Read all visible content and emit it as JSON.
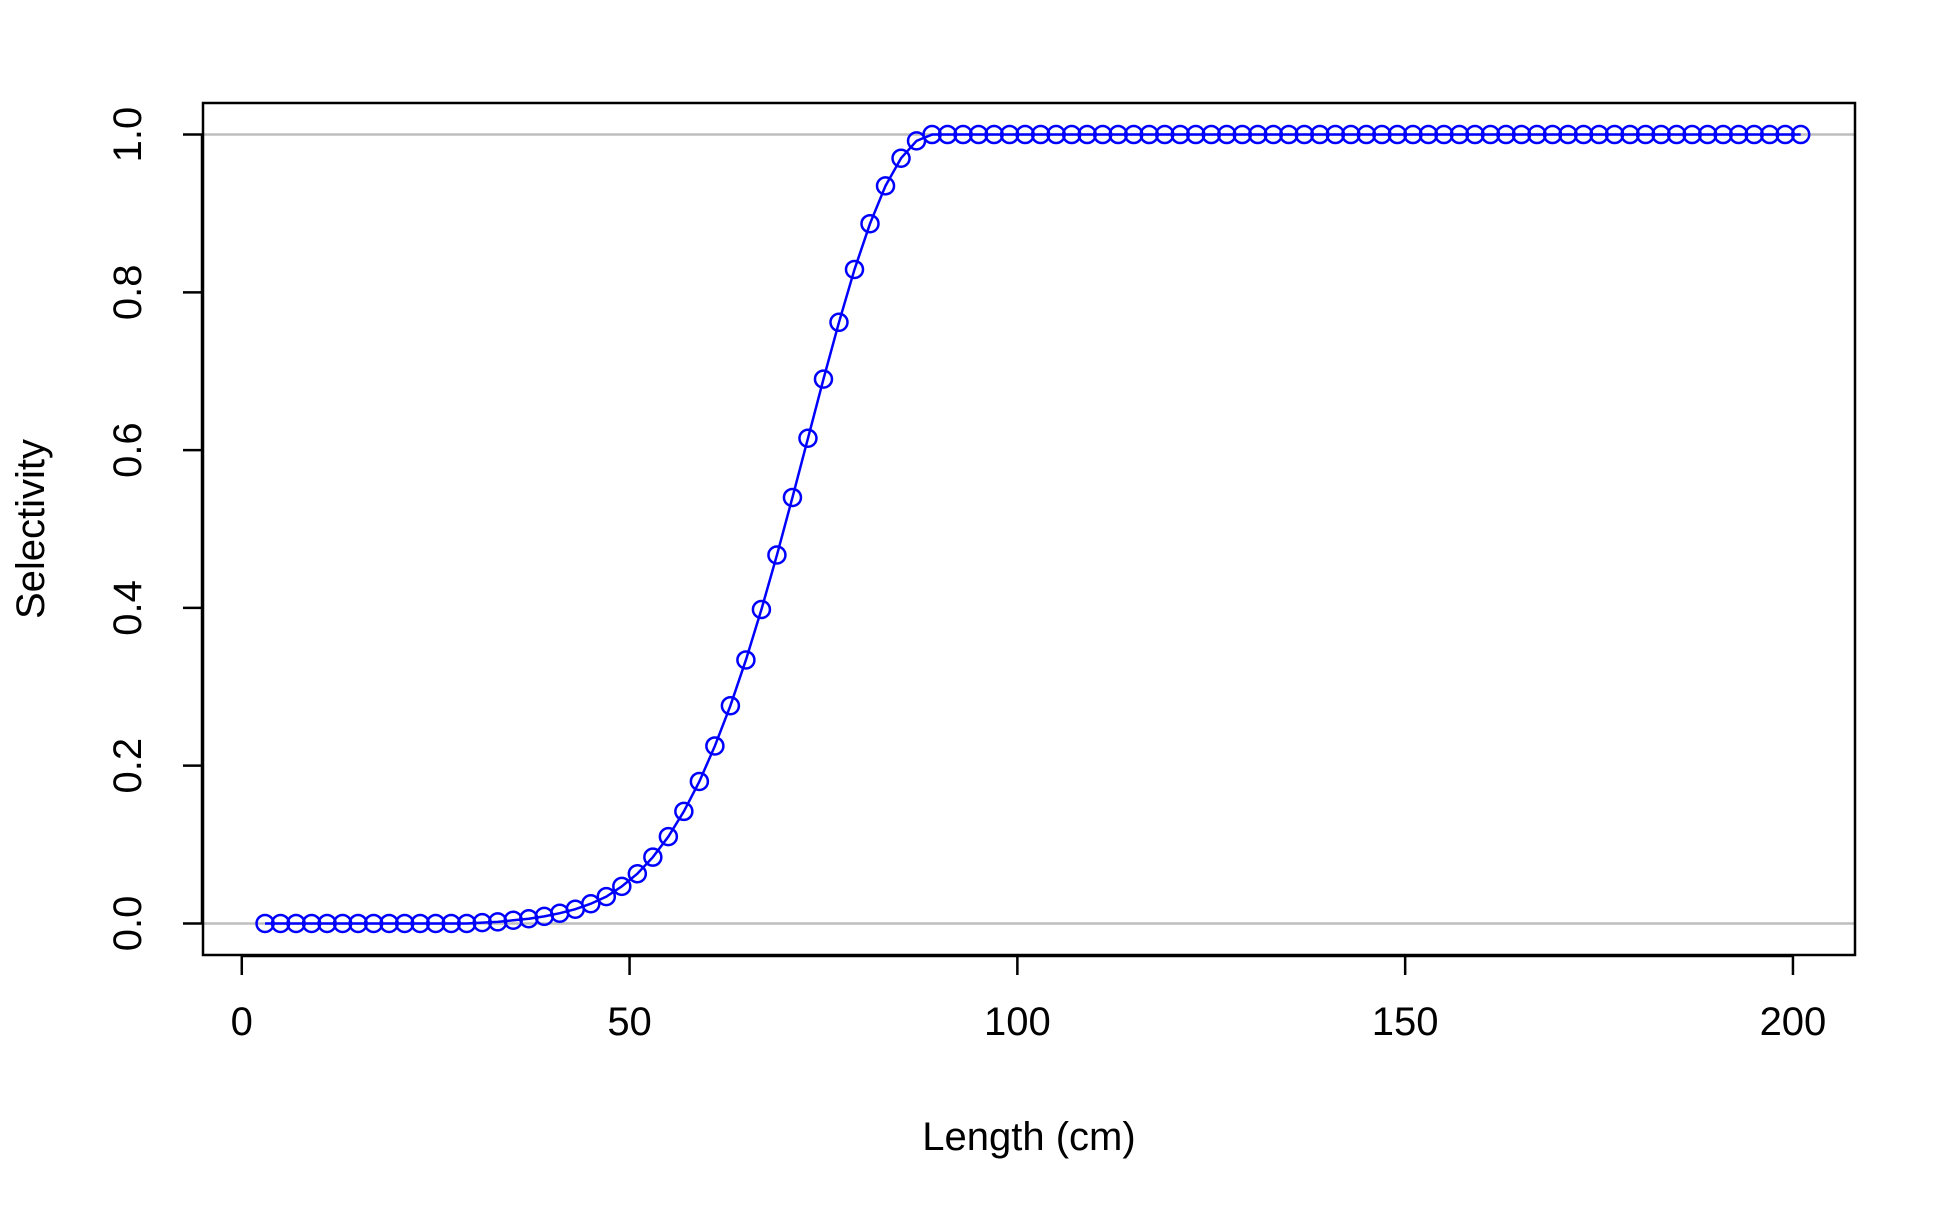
{
  "chart_data": {
    "type": "line",
    "title": "",
    "xlabel": "Length (cm)",
    "ylabel": "Selectivity",
    "xlim": [
      -5,
      208
    ],
    "ylim": [
      -0.04,
      1.04
    ],
    "xticks": [
      0,
      50,
      100,
      150,
      200
    ],
    "yticks": [
      0.0,
      0.2,
      0.4,
      0.6,
      0.8,
      1.0
    ],
    "xtick_labels": [
      "0",
      "50",
      "100",
      "150",
      "200"
    ],
    "ytick_labels": [
      "0.0",
      "0.2",
      "0.4",
      "0.6",
      "0.8",
      "1.0"
    ],
    "reference_lines_y": [
      0,
      1
    ],
    "reference_line_color": "#bebebe",
    "series_color": "#0000ff",
    "marker": "open-circle",
    "grid": false,
    "legend": "none",
    "series": [
      {
        "x": [
          3,
          5,
          7,
          9,
          11,
          13,
          15,
          17,
          19,
          21,
          23,
          25,
          27,
          29,
          31,
          33,
          35,
          37,
          39,
          41,
          43,
          45,
          47,
          49,
          51,
          53,
          55,
          57,
          59,
          61,
          63,
          65,
          67,
          69,
          71,
          73,
          75,
          77,
          79,
          81,
          83,
          85,
          87,
          89,
          91,
          93,
          95,
          97,
          99,
          101,
          103,
          105,
          107,
          109,
          111,
          113,
          115,
          117,
          119,
          121,
          123,
          125,
          127,
          129,
          131,
          133,
          135,
          137,
          139,
          141,
          143,
          145,
          147,
          149,
          151,
          153,
          155,
          157,
          159,
          161,
          163,
          165,
          167,
          169,
          171,
          173,
          175,
          177,
          179,
          181,
          183,
          185,
          187,
          189,
          191,
          193,
          195,
          197,
          199,
          201
        ],
        "y": [
          0.0,
          0.0,
          0.0,
          0.0,
          0.0,
          0.0,
          0.0,
          0.0,
          0.0,
          0.0,
          0.0,
          0.0,
          0.0,
          0.0,
          0.001,
          0.002,
          0.004,
          0.006,
          0.009,
          0.013,
          0.018,
          0.025,
          0.034,
          0.047,
          0.063,
          0.084,
          0.11,
          0.142,
          0.18,
          0.225,
          0.276,
          0.334,
          0.398,
          0.467,
          0.54,
          0.615,
          0.69,
          0.762,
          0.829,
          0.887,
          0.935,
          0.97,
          0.992,
          1.0,
          1.0,
          1.0,
          1.0,
          1.0,
          1.0,
          1.0,
          1.0,
          1.0,
          1.0,
          1.0,
          1.0,
          1.0,
          1.0,
          1.0,
          1.0,
          1.0,
          1.0,
          1.0,
          1.0,
          1.0,
          1.0,
          1.0,
          1.0,
          1.0,
          1.0,
          1.0,
          1.0,
          1.0,
          1.0,
          1.0,
          1.0,
          1.0,
          1.0,
          1.0,
          1.0,
          1.0,
          1.0,
          1.0,
          1.0,
          1.0,
          1.0,
          1.0,
          1.0,
          1.0,
          1.0,
          1.0,
          1.0,
          1.0,
          1.0,
          1.0,
          1.0,
          1.0,
          1.0,
          1.0,
          1.0,
          1.0
        ]
      }
    ]
  }
}
